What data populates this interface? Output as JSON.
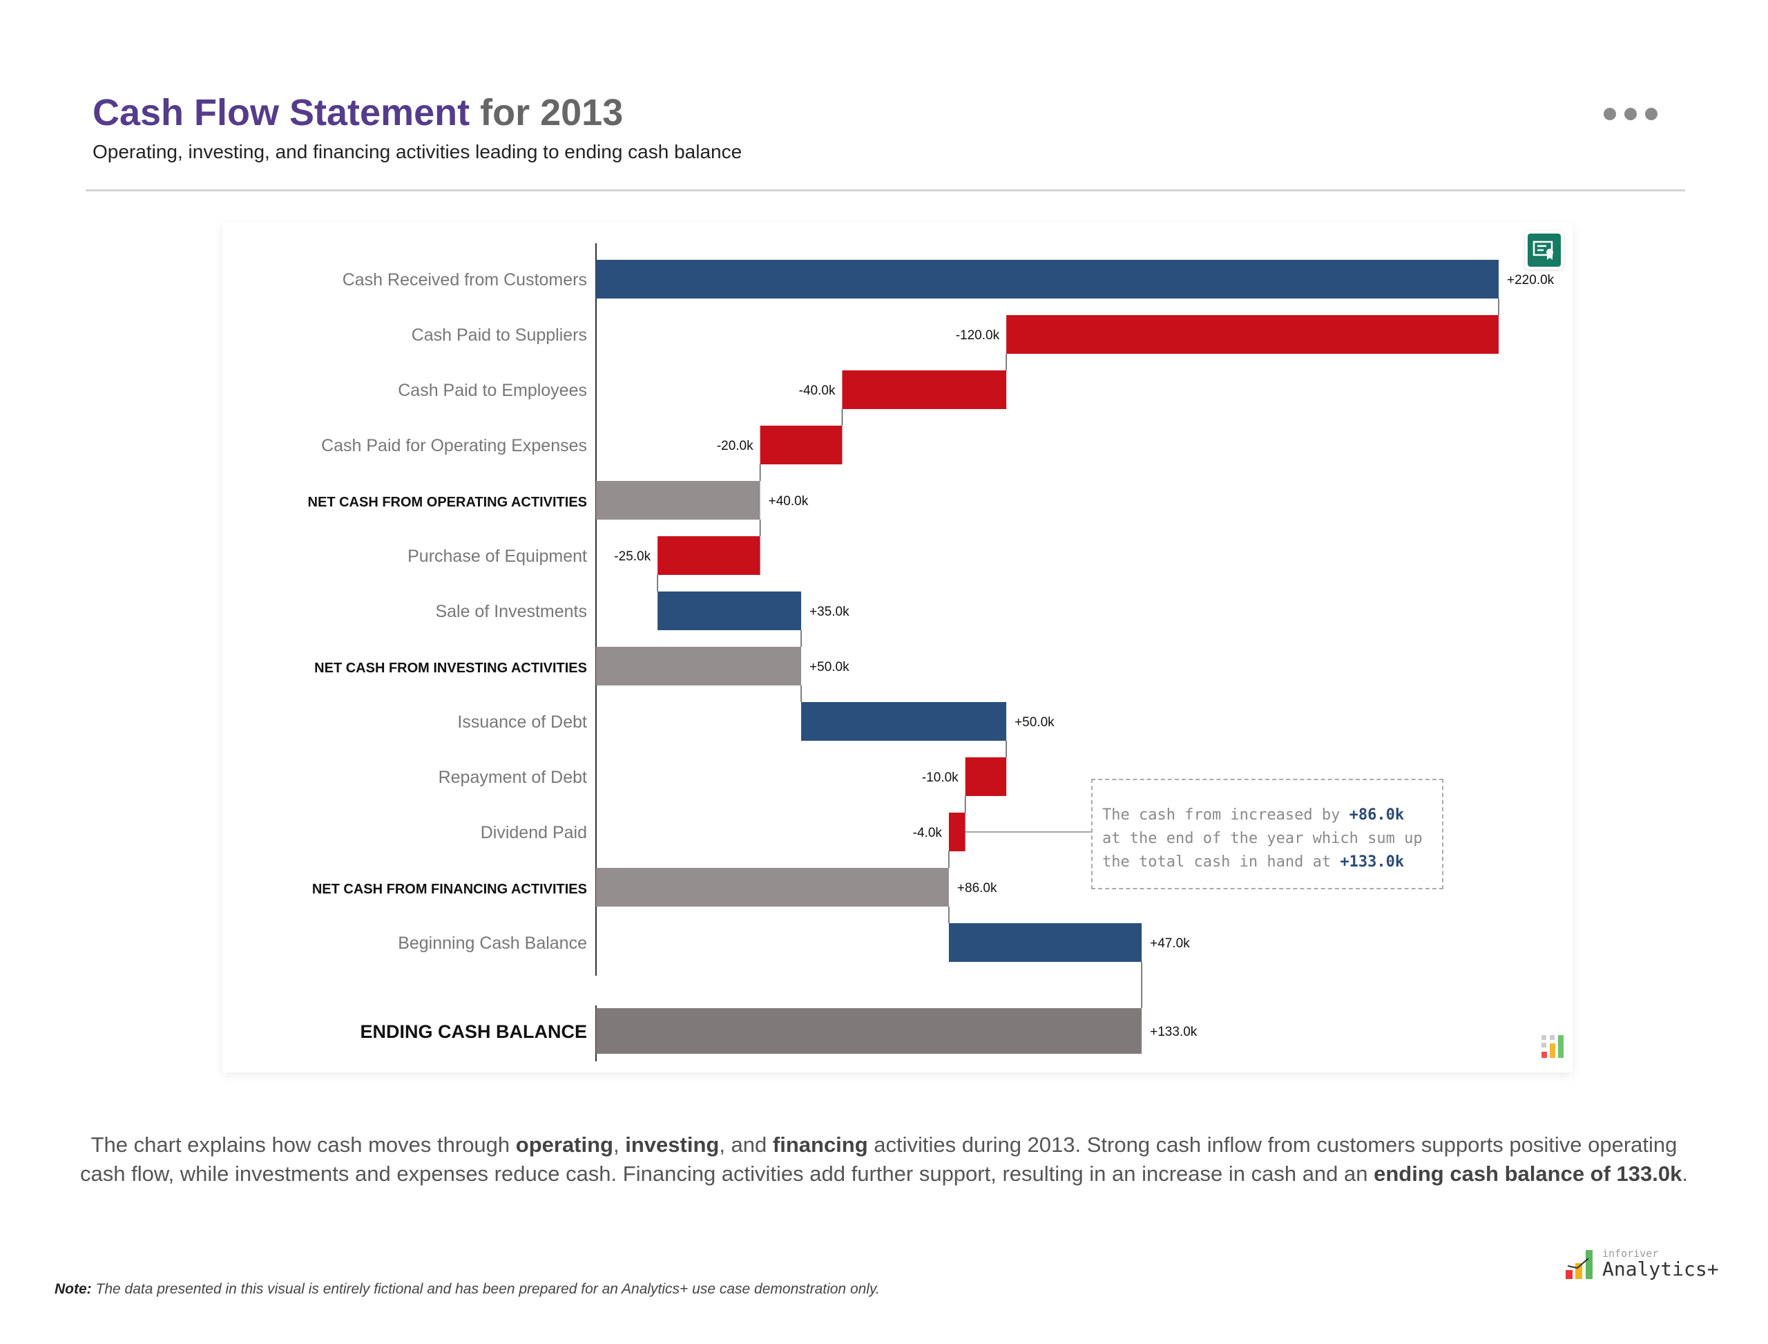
{
  "header": {
    "title_main": "Cash Flow Statement",
    "title_rest": "for 2013",
    "subtitle": "Operating, investing, and financing activities leading to ending cash balance",
    "more_icon": "ellipsis-icon"
  },
  "chart_data": {
    "type": "waterfall",
    "unit": "k",
    "xlim": [
      0,
      220
    ],
    "colors": {
      "increase": "#2b4f7c",
      "decrease": "#c8101b",
      "subtotal": "#948f8e",
      "total": "#7f7a79"
    },
    "rows": [
      {
        "label": "Cash Received from Customers",
        "value": 220.0,
        "kind": "increase",
        "display": "+220.0k"
      },
      {
        "label": "Cash Paid to Suppliers",
        "value": -120.0,
        "kind": "decrease",
        "display": "-120.0k"
      },
      {
        "label": "Cash Paid to Employees",
        "value": -40.0,
        "kind": "decrease",
        "display": "-40.0k"
      },
      {
        "label": "Cash Paid for Operating Expenses",
        "value": -20.0,
        "kind": "decrease",
        "display": "-20.0k"
      },
      {
        "label": "NET CASH FROM OPERATING ACTIVITIES",
        "value": 40.0,
        "kind": "subtotal",
        "display": "+40.0k"
      },
      {
        "label": "Purchase of Equipment",
        "value": -25.0,
        "kind": "decrease",
        "display": "-25.0k"
      },
      {
        "label": "Sale of Investments",
        "value": 35.0,
        "kind": "increase",
        "display": "+35.0k"
      },
      {
        "label": "NET CASH FROM INVESTING ACTIVITIES",
        "value": 50.0,
        "kind": "subtotal",
        "display": "+50.0k"
      },
      {
        "label": "Issuance of Debt",
        "value": 50.0,
        "kind": "increase",
        "display": "+50.0k"
      },
      {
        "label": "Repayment of Debt",
        "value": -10.0,
        "kind": "decrease",
        "display": "-10.0k"
      },
      {
        "label": "Dividend Paid",
        "value": -4.0,
        "kind": "decrease",
        "display": "-4.0k"
      },
      {
        "label": "NET CASH FROM FINANCING ACTIVITIES",
        "value": 86.0,
        "kind": "subtotal",
        "display": "+86.0k"
      },
      {
        "label": "Beginning Cash Balance",
        "value": 47.0,
        "kind": "increase",
        "display": "+47.0k"
      },
      {
        "label": "ENDING CASH BALANCE",
        "value": 133.0,
        "kind": "total",
        "display": "+133.0k"
      }
    ],
    "annotation": {
      "line1_pre": "The cash from increased by ",
      "line1_val": "+86.0k",
      "line2": "at the end of the year which sum up",
      "line3_pre": "the total cash in hand at ",
      "line3_val": "+133.0k"
    }
  },
  "description": {
    "p1": "The chart explains how cash moves through ",
    "b1": "operating",
    "p2": ", ",
    "b2": "investing",
    "p3": ", and ",
    "b3": "financing",
    "p4": " activities during 2013. Strong cash inflow from customers supports positive operating cash flow, while investments and expenses reduce cash. Financing activities add further support, resulting in an increase in cash and an ",
    "b4": "ending cash balance of 133.0k",
    "p5": "."
  },
  "footer": {
    "note_label": "Note:",
    "note_text": " The data presented in this visual is entirely fictional and has been prepared for an Analytics+ use case demonstration only.",
    "logo_small": "inforiver",
    "logo_big": "Analytics+"
  },
  "icons": {
    "certificate": "certificate-icon",
    "chart_type": "bar-chart-icon"
  }
}
